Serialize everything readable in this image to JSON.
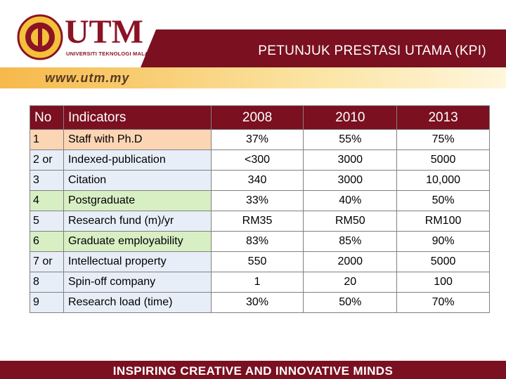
{
  "header": {
    "logo_text": "UTM",
    "logo_subtitle": "UNIVERSITI TEKNOLOGI MALAYSIA",
    "title": "PETUNJUK PRESTASI UTAMA (KPI)",
    "url": "www.utm.my"
  },
  "table": {
    "columns": [
      "No",
      "Indicators",
      "2008",
      "2010",
      "2013"
    ],
    "rows": [
      [
        "1",
        "Staff with Ph.D",
        "37%",
        "55%",
        "75%"
      ],
      [
        "2 or",
        "Indexed-publication",
        "<300",
        "3000",
        "5000"
      ],
      [
        "3",
        "Citation",
        "340",
        "3000",
        "10,000"
      ],
      [
        "4",
        "Postgraduate",
        "33%",
        "40%",
        "50%"
      ],
      [
        "5",
        "Research fund (m)/yr",
        "RM35",
        "RM50",
        "RM100"
      ],
      [
        "6",
        "Graduate employability",
        "83%",
        "85%",
        "90%"
      ],
      [
        "7 or",
        "Intellectual property",
        "550",
        "2000",
        "5000"
      ],
      [
        "8",
        "Spin-off company",
        "1",
        "20",
        "100"
      ],
      [
        "9",
        "Research load (time)",
        "30%",
        "50%",
        "70%"
      ]
    ]
  },
  "footer": {
    "tagline": "INSPIRING CREATIVE AND INNOVATIVE MINDS"
  }
}
